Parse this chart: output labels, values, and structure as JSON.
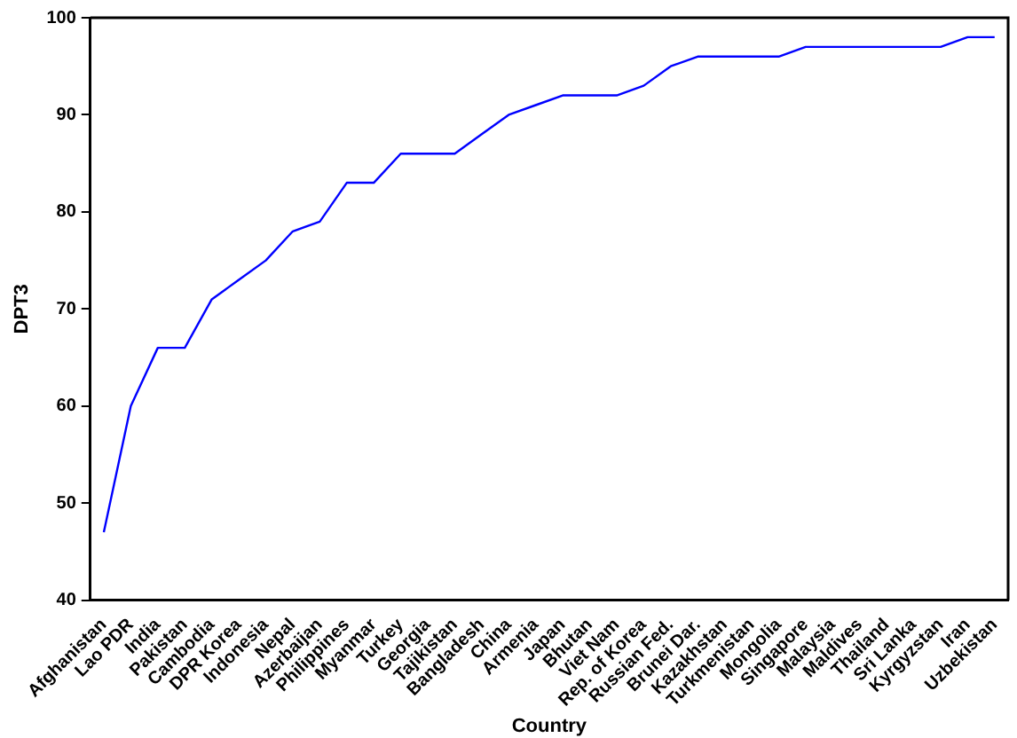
{
  "chart_data": {
    "type": "line",
    "xlabel": "Country",
    "ylabel": "DPT3",
    "categories": [
      "Afghanistan",
      "Lao PDR",
      "India",
      "Pakistan",
      "Cambodia",
      "DPR Korea",
      "Indonesia",
      "Nepal",
      "Azerbaijan",
      "Philippines",
      "Myanmar",
      "Turkey",
      "Georgia",
      "Tajikistan",
      "Bangladesh",
      "China",
      "Armenia",
      "Japan",
      "Bhutan",
      "Viet Nam",
      "Rep. of Korea",
      "Russian Fed.",
      "Brunei Dar.",
      "Kazakhstan",
      "Turkmenistan",
      "Mongolia",
      "Singapore",
      "Malaysia",
      "Maldives",
      "Thailand",
      "Sri Lanka",
      "Kyrgyzstan",
      "Iran",
      "Uzbekistan"
    ],
    "series": [
      {
        "color": "#0000ff",
        "values": [
          47,
          60,
          66,
          66,
          71,
          73,
          75,
          78,
          79,
          83,
          83,
          86,
          86,
          86,
          88,
          90,
          91,
          92,
          92,
          92,
          93,
          95,
          96,
          96,
          96,
          96,
          97,
          97,
          97,
          97,
          97,
          97,
          98,
          98
        ]
      }
    ],
    "ylim": [
      40,
      100
    ],
    "yticks": [
      40,
      50,
      60,
      70,
      80,
      90,
      100
    ],
    "grid": false,
    "legend": false,
    "marker": "none",
    "line_style": "solid"
  }
}
